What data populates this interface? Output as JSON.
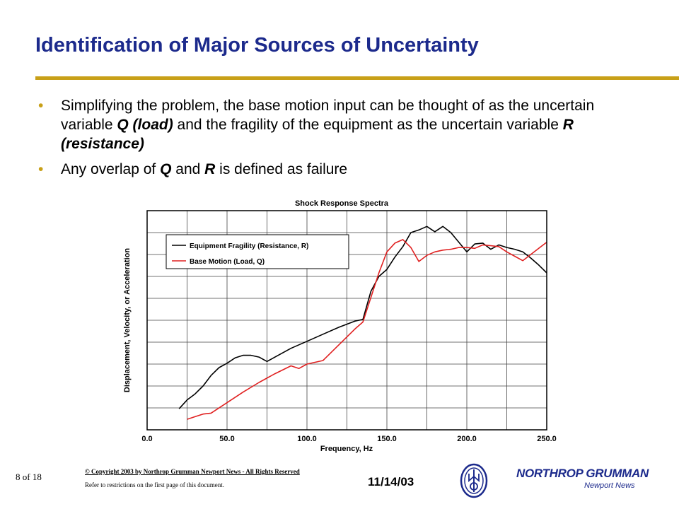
{
  "slide": {
    "title": "Identification of Major Sources of Uncertainty",
    "bullets": [
      {
        "parts": [
          "Simplifying the problem, the base motion input can be thought of as the uncertain variable ",
          "Q (load)",
          " and the fragility of the equipment as the uncertain variable ",
          "R (resistance)",
          ""
        ]
      },
      {
        "parts": [
          "Any overlap of ",
          "Q",
          " and ",
          "R",
          " is defined as failure"
        ]
      }
    ]
  },
  "chart_data": {
    "type": "line",
    "title": "Shock Response Spectra",
    "xlabel": "Frequency, Hz",
    "ylabel": "Displacement, Velocity, or Acceleration",
    "xlim": [
      0,
      250
    ],
    "x_ticks": [
      "0.0",
      "50.0",
      "100.0",
      "150.0",
      "200.0",
      "250.0"
    ],
    "y_ticks_count": 10,
    "grid": true,
    "legend_position": "top-left",
    "series": [
      {
        "name": "Equipment Fragility (Resistance, R)",
        "color": "#000000",
        "x": [
          20,
          25,
          30,
          35,
          40,
          45,
          50,
          55,
          60,
          65,
          70,
          75,
          80,
          90,
          100,
          110,
          120,
          130,
          135,
          140,
          145,
          150,
          155,
          160,
          165,
          170,
          175,
          180,
          185,
          190,
          195,
          200,
          205,
          210,
          215,
          220,
          225,
          230,
          235,
          240,
          245,
          250
        ],
        "y": [
          0.4,
          1.4,
          2.1,
          3.0,
          4.2,
          5.1,
          5.6,
          6.2,
          6.5,
          6.5,
          6.3,
          5.8,
          6.3,
          7.3,
          8.1,
          8.9,
          9.7,
          10.4,
          10.6,
          13.8,
          15.5,
          16.3,
          17.7,
          18.9,
          20.5,
          20.8,
          21.2,
          20.6,
          21.2,
          20.5,
          19.4,
          18.3,
          19.2,
          19.3,
          18.6,
          19.1,
          18.8,
          18.6,
          18.3,
          17.6,
          16.8,
          15.9
        ]
      },
      {
        "name": "Base Motion (Load, Q)",
        "color": "#e02020",
        "x": [
          25,
          30,
          35,
          40,
          50,
          60,
          70,
          80,
          90,
          95,
          100,
          110,
          120,
          130,
          135,
          140,
          145,
          150,
          155,
          160,
          165,
          170,
          175,
          180,
          185,
          190,
          195,
          200,
          205,
          210,
          215,
          220,
          225,
          230,
          235,
          240,
          245,
          250
        ],
        "y": [
          -0.8,
          -0.5,
          -0.2,
          -0.1,
          1.1,
          2.3,
          3.4,
          4.4,
          5.3,
          5.0,
          5.5,
          5.9,
          7.7,
          9.5,
          10.3,
          13.1,
          15.9,
          18.3,
          19.3,
          19.7,
          18.8,
          17.2,
          17.9,
          18.3,
          18.5,
          18.6,
          18.8,
          18.8,
          18.7,
          19.1,
          19.0,
          18.9,
          18.3,
          17.8,
          17.3,
          18.0,
          18.7,
          19.4
        ]
      }
    ]
  },
  "footer": {
    "page": "8 of  18",
    "copyright": "© Copyright 2003 by Northrop Grumman Newport News - All Rights Reserved",
    "restrictions": "Refer to restrictions on the first page of this document.",
    "date": "11/14/03",
    "logo_name": "NORTHROP GRUMMAN",
    "logo_sub": "Newport News"
  }
}
